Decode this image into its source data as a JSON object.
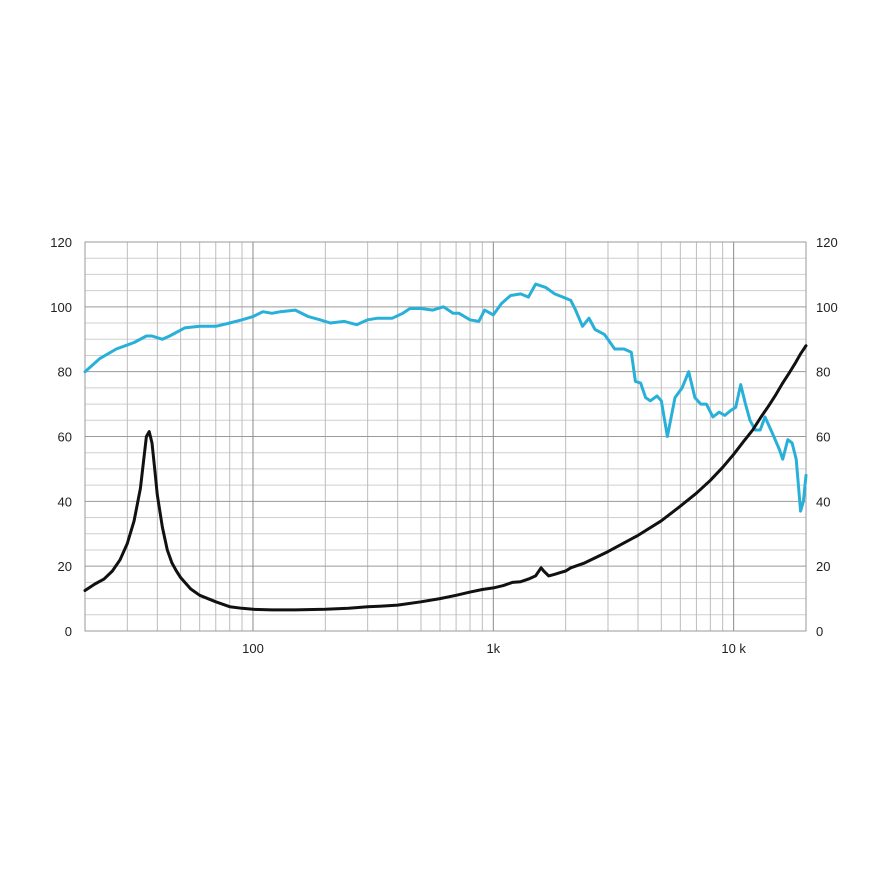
{
  "chart_data": {
    "type": "line",
    "x_scale": "log",
    "xlim": [
      20,
      20000
    ],
    "ylim": [
      0,
      120
    ],
    "grid": true,
    "x_tick_labels": [
      {
        "value": 100,
        "label": "100"
      },
      {
        "value": 1000,
        "label": "1k"
      },
      {
        "value": 10000,
        "label": "10 k"
      }
    ],
    "y_ticks_left": [
      0,
      20,
      40,
      60,
      80,
      100,
      120
    ],
    "y_ticks_right": [
      0,
      20,
      40,
      60,
      80,
      100,
      120
    ],
    "series": [
      {
        "color": "#29b0d8",
        "points": [
          [
            20,
            80
          ],
          [
            23,
            84
          ],
          [
            27,
            87
          ],
          [
            32,
            89
          ],
          [
            36,
            91
          ],
          [
            38,
            91
          ],
          [
            42,
            90
          ],
          [
            45,
            91
          ],
          [
            52,
            93.5
          ],
          [
            60,
            94
          ],
          [
            70,
            94
          ],
          [
            80,
            95
          ],
          [
            90,
            96
          ],
          [
            100,
            97
          ],
          [
            110,
            98.5
          ],
          [
            120,
            98
          ],
          [
            130,
            98.5
          ],
          [
            150,
            99
          ],
          [
            170,
            97
          ],
          [
            190,
            96
          ],
          [
            210,
            95
          ],
          [
            240,
            95.5
          ],
          [
            270,
            94.5
          ],
          [
            300,
            96
          ],
          [
            330,
            96.5
          ],
          [
            380,
            96.5
          ],
          [
            420,
            98
          ],
          [
            450,
            99.5
          ],
          [
            500,
            99.5
          ],
          [
            560,
            99
          ],
          [
            620,
            100
          ],
          [
            680,
            98
          ],
          [
            720,
            98
          ],
          [
            800,
            96
          ],
          [
            870,
            95.5
          ],
          [
            920,
            99
          ],
          [
            1000,
            97.5
          ],
          [
            1080,
            101
          ],
          [
            1180,
            103.5
          ],
          [
            1300,
            104
          ],
          [
            1400,
            103
          ],
          [
            1500,
            107
          ],
          [
            1650,
            106
          ],
          [
            1800,
            104
          ],
          [
            1950,
            103
          ],
          [
            2100,
            102
          ],
          [
            2200,
            99
          ],
          [
            2350,
            94
          ],
          [
            2500,
            96.5
          ],
          [
            2650,
            93
          ],
          [
            2900,
            91.5
          ],
          [
            3200,
            87
          ],
          [
            3500,
            87
          ],
          [
            3750,
            86
          ],
          [
            3900,
            77
          ],
          [
            4100,
            76.5
          ],
          [
            4300,
            72
          ],
          [
            4500,
            71
          ],
          [
            4800,
            72.5
          ],
          [
            5000,
            71
          ],
          [
            5300,
            60
          ],
          [
            5700,
            72
          ],
          [
            6100,
            75
          ],
          [
            6500,
            80
          ],
          [
            6900,
            72
          ],
          [
            7300,
            70
          ],
          [
            7700,
            70
          ],
          [
            8200,
            66
          ],
          [
            8700,
            67.5
          ],
          [
            9200,
            66.5
          ],
          [
            9700,
            68
          ],
          [
            10200,
            69
          ],
          [
            10700,
            76
          ],
          [
            11200,
            70
          ],
          [
            11700,
            65
          ],
          [
            12300,
            62
          ],
          [
            12900,
            62
          ],
          [
            13500,
            66
          ],
          [
            14500,
            61
          ],
          [
            15500,
            56
          ],
          [
            16000,
            53
          ],
          [
            16800,
            59
          ],
          [
            17500,
            58
          ],
          [
            18200,
            53
          ],
          [
            19000,
            37
          ],
          [
            19500,
            40
          ],
          [
            20000,
            48
          ]
        ]
      },
      {
        "color": "#111111",
        "points": [
          [
            20,
            12.5
          ],
          [
            22,
            14.5
          ],
          [
            24,
            16
          ],
          [
            26,
            18.5
          ],
          [
            28,
            22
          ],
          [
            30,
            27
          ],
          [
            32,
            34
          ],
          [
            34,
            44
          ],
          [
            35,
            52
          ],
          [
            36,
            60
          ],
          [
            37,
            61.5
          ],
          [
            38,
            58
          ],
          [
            39,
            50
          ],
          [
            40,
            42
          ],
          [
            42,
            32
          ],
          [
            44,
            25
          ],
          [
            46,
            21
          ],
          [
            48,
            18.5
          ],
          [
            50,
            16.5
          ],
          [
            55,
            13
          ],
          [
            60,
            11
          ],
          [
            70,
            9
          ],
          [
            80,
            7.5
          ],
          [
            90,
            7
          ],
          [
            100,
            6.7
          ],
          [
            120,
            6.5
          ],
          [
            150,
            6.5
          ],
          [
            200,
            6.7
          ],
          [
            250,
            7
          ],
          [
            300,
            7.5
          ],
          [
            350,
            7.7
          ],
          [
            400,
            8
          ],
          [
            500,
            9
          ],
          [
            600,
            10
          ],
          [
            700,
            11
          ],
          [
            800,
            12
          ],
          [
            900,
            12.8
          ],
          [
            1000,
            13.3
          ],
          [
            1100,
            14
          ],
          [
            1200,
            15
          ],
          [
            1300,
            15.2
          ],
          [
            1400,
            16
          ],
          [
            1500,
            17
          ],
          [
            1580,
            19.5
          ],
          [
            1620,
            18.5
          ],
          [
            1700,
            17
          ],
          [
            1800,
            17.5
          ],
          [
            1900,
            18
          ],
          [
            2000,
            18.5
          ],
          [
            2100,
            19.5
          ],
          [
            2400,
            21
          ],
          [
            3000,
            24.5
          ],
          [
            4000,
            29.5
          ],
          [
            5000,
            34
          ],
          [
            6000,
            38.5
          ],
          [
            7000,
            42.5
          ],
          [
            8000,
            46.5
          ],
          [
            9000,
            50.5
          ],
          [
            10000,
            54.5
          ],
          [
            11000,
            58.5
          ],
          [
            12000,
            62
          ],
          [
            13000,
            66
          ],
          [
            14000,
            69.5
          ],
          [
            15000,
            73
          ],
          [
            16000,
            76.5
          ],
          [
            17000,
            79.5
          ],
          [
            18000,
            82.5
          ],
          [
            19000,
            85.5
          ],
          [
            20000,
            88
          ]
        ]
      }
    ]
  }
}
